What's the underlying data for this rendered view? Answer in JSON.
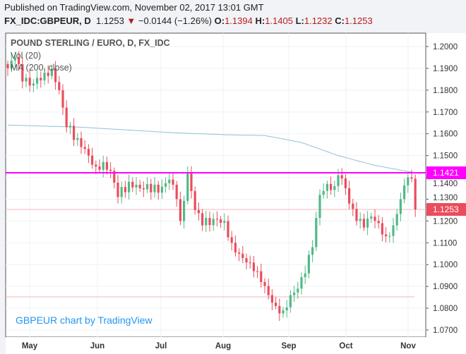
{
  "header": {
    "published": "Published on TradingView.com, November 02, 2017 13:01 GMT",
    "symbol": "FX_IDC:GBPEUR, D",
    "last": "1.1253",
    "change": "−0.0144 (−1.26%)",
    "o_label": "O:",
    "o": "1.1394",
    "h_label": "H:",
    "h": "1.1405",
    "l_label": "L:",
    "l": "1.1232",
    "c_label": "C:",
    "c": "1.1253"
  },
  "legend": {
    "title": "POUND STERLING / EURO, D, FX_IDC",
    "vol": "Vol (20)",
    "ma": "MA (200, close)"
  },
  "watermark": "GBPEUR chart by TradingView",
  "colors": {
    "up": "#53b987",
    "down": "#eb4d5c",
    "ma": "#8fc3d3",
    "hline": "#ff00ff"
  },
  "chart_data": {
    "type": "candlestick",
    "title": "POUND STERLING / EURO, D, FX_IDC",
    "ylim": [
      1.07,
      1.205
    ],
    "yticks": [
      "1.2000",
      "1.1900",
      "1.1800",
      "1.1700",
      "1.1600",
      "1.1500",
      "1.1400",
      "1.1300",
      "1.1200",
      "1.1100",
      "1.1000",
      "1.0900",
      "1.0800",
      "1.0700"
    ],
    "xticks": [
      "May",
      "Jun",
      "Jul",
      "Aug",
      "Sep",
      "Oct",
      "Nov"
    ],
    "close_waypoints": [
      [
        0,
        1.19
      ],
      [
        2,
        1.195
      ],
      [
        4,
        1.184
      ],
      [
        7,
        1.183
      ],
      [
        10,
        1.188
      ],
      [
        12,
        1.19
      ],
      [
        14,
        1.18
      ],
      [
        15,
        1.172
      ],
      [
        16,
        1.163
      ],
      [
        19,
        1.158
      ],
      [
        22,
        1.15
      ],
      [
        24,
        1.145
      ],
      [
        26,
        1.147
      ],
      [
        28,
        1.143
      ],
      [
        30,
        1.131
      ],
      [
        33,
        1.138
      ],
      [
        36,
        1.135
      ],
      [
        38,
        1.137
      ],
      [
        41,
        1.133
      ],
      [
        44,
        1.139
      ],
      [
        46,
        1.13
      ],
      [
        47,
        1.12
      ],
      [
        49,
        1.142
      ],
      [
        51,
        1.125
      ],
      [
        53,
        1.118
      ],
      [
        56,
        1.121
      ],
      [
        59,
        1.12
      ],
      [
        61,
        1.11
      ],
      [
        63,
        1.105
      ],
      [
        65,
        1.101
      ],
      [
        67,
        1.097
      ],
      [
        69,
        1.092
      ],
      [
        71,
        1.086
      ],
      [
        73,
        1.081
      ],
      [
        75,
        1.079
      ],
      [
        77,
        1.086
      ],
      [
        79,
        1.089
      ],
      [
        81,
        1.096
      ],
      [
        83,
        1.108
      ],
      [
        85,
        1.132
      ],
      [
        87,
        1.137
      ],
      [
        89,
        1.136
      ],
      [
        90,
        1.141
      ],
      [
        92,
        1.135
      ],
      [
        93,
        1.128
      ],
      [
        95,
        1.12
      ],
      [
        97,
        1.117
      ],
      [
        99,
        1.122
      ],
      [
        101,
        1.119
      ],
      [
        103,
        1.113
      ],
      [
        105,
        1.118
      ],
      [
        107,
        1.13
      ],
      [
        109,
        1.14
      ],
      [
        110,
        1.1394
      ],
      [
        111,
        1.1253
      ]
    ],
    "ma_waypoints": [
      [
        0,
        1.164
      ],
      [
        20,
        1.163
      ],
      [
        45,
        1.1605
      ],
      [
        60,
        1.1595
      ],
      [
        70,
        1.1592
      ],
      [
        80,
        1.156
      ],
      [
        90,
        1.15
      ],
      [
        100,
        1.1455
      ],
      [
        111,
        1.1421
      ]
    ],
    "hline": {
      "value": 1.1421,
      "label": "1.1421"
    },
    "last_price": {
      "value": 1.1253,
      "label": "1.1253"
    },
    "low_line": 1.0852
  }
}
